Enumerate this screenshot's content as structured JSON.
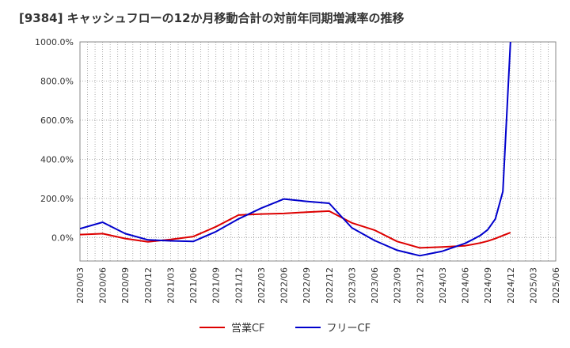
{
  "title": "[9384]  キャッシュフローの12か月移動合計の対前年同期増減率の推移",
  "chart_data": {
    "type": "line",
    "title": "[9384]  キャッシュフローの12か月移動合計の対前年同期増減率の推移",
    "xlabel": "",
    "ylabel": "",
    "x_ticks": [
      "2020/03",
      "2020/06",
      "2020/09",
      "2020/12",
      "2021/03",
      "2021/06",
      "2021/09",
      "2021/12",
      "2022/03",
      "2022/06",
      "2022/09",
      "2022/12",
      "2023/03",
      "2023/06",
      "2023/09",
      "2023/12",
      "2024/03",
      "2024/06",
      "2024/09",
      "2024/12",
      "2025/03",
      "2025/06"
    ],
    "y_ticks": [
      0,
      200,
      400,
      600,
      800,
      1000
    ],
    "y_tick_labels": [
      "0.0%",
      "200.0%",
      "400.0%",
      "600.0%",
      "800.0%",
      "1000.0%"
    ],
    "ylim": [
      -120,
      1000
    ],
    "grid": true,
    "legend_position": "bottom",
    "series": [
      {
        "name": "営業CF",
        "color": "#dd0000",
        "points": [
          [
            "2020/03",
            15
          ],
          [
            "2020/06",
            20
          ],
          [
            "2020/09",
            -5
          ],
          [
            "2020/12",
            -22
          ],
          [
            "2021/03",
            -10
          ],
          [
            "2021/06",
            5
          ],
          [
            "2021/09",
            55
          ],
          [
            "2021/12",
            115
          ],
          [
            "2022/03",
            120
          ],
          [
            "2022/06",
            123
          ],
          [
            "2022/09",
            130
          ],
          [
            "2022/12",
            135
          ],
          [
            "2023/03",
            75
          ],
          [
            "2023/06",
            38
          ],
          [
            "2023/09",
            -20
          ],
          [
            "2023/12",
            -53
          ],
          [
            "2024/03",
            -48
          ],
          [
            "2024/06",
            -42
          ],
          [
            "2024/07",
            -35
          ],
          [
            "2024/08",
            -28
          ],
          [
            "2024/09",
            -18
          ],
          [
            "2024/10",
            -5
          ],
          [
            "2024/11",
            10
          ],
          [
            "2024/12",
            25
          ]
        ]
      },
      {
        "name": "フリーCF",
        "color": "#0000cc",
        "points": [
          [
            "2020/03",
            45
          ],
          [
            "2020/06",
            78
          ],
          [
            "2020/09",
            20
          ],
          [
            "2020/12",
            -12
          ],
          [
            "2021/03",
            -17
          ],
          [
            "2021/06",
            -20
          ],
          [
            "2021/09",
            30
          ],
          [
            "2021/12",
            95
          ],
          [
            "2022/03",
            150
          ],
          [
            "2022/06",
            197
          ],
          [
            "2022/09",
            185
          ],
          [
            "2022/12",
            175
          ],
          [
            "2023/03",
            50
          ],
          [
            "2023/06",
            -15
          ],
          [
            "2023/09",
            -65
          ],
          [
            "2023/12",
            -93
          ],
          [
            "2024/03",
            -70
          ],
          [
            "2024/06",
            -30
          ],
          [
            "2024/07",
            -10
          ],
          [
            "2024/08",
            10
          ],
          [
            "2024/09",
            40
          ],
          [
            "2024/10",
            95
          ],
          [
            "2024/11",
            235
          ],
          [
            "2024/12",
            1000
          ]
        ]
      }
    ]
  }
}
